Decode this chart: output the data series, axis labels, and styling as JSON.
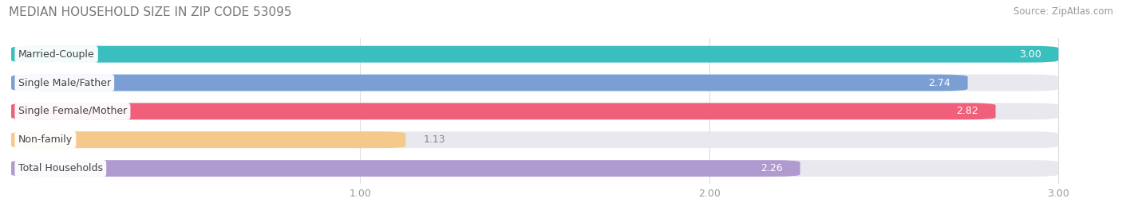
{
  "title": "MEDIAN HOUSEHOLD SIZE IN ZIP CODE 53095",
  "source": "Source: ZipAtlas.com",
  "categories": [
    "Married-Couple",
    "Single Male/Father",
    "Single Female/Mother",
    "Non-family",
    "Total Households"
  ],
  "values": [
    3.0,
    2.74,
    2.82,
    1.13,
    2.26
  ],
  "bar_colors": [
    "#3abfbf",
    "#7b9fd4",
    "#f0607a",
    "#f5c98a",
    "#b09ad0"
  ],
  "xlim_min": 0.0,
  "xlim_max": 3.15,
  "data_min": 0.0,
  "data_max": 3.0,
  "xticks": [
    1.0,
    2.0,
    3.0
  ],
  "title_fontsize": 11,
  "source_fontsize": 8.5,
  "label_fontsize": 9,
  "value_fontsize": 9,
  "tick_fontsize": 9,
  "background_color": "#ffffff",
  "bar_bg_color": "#e8e8ee",
  "bar_height": 0.58,
  "bar_gap": 0.42
}
